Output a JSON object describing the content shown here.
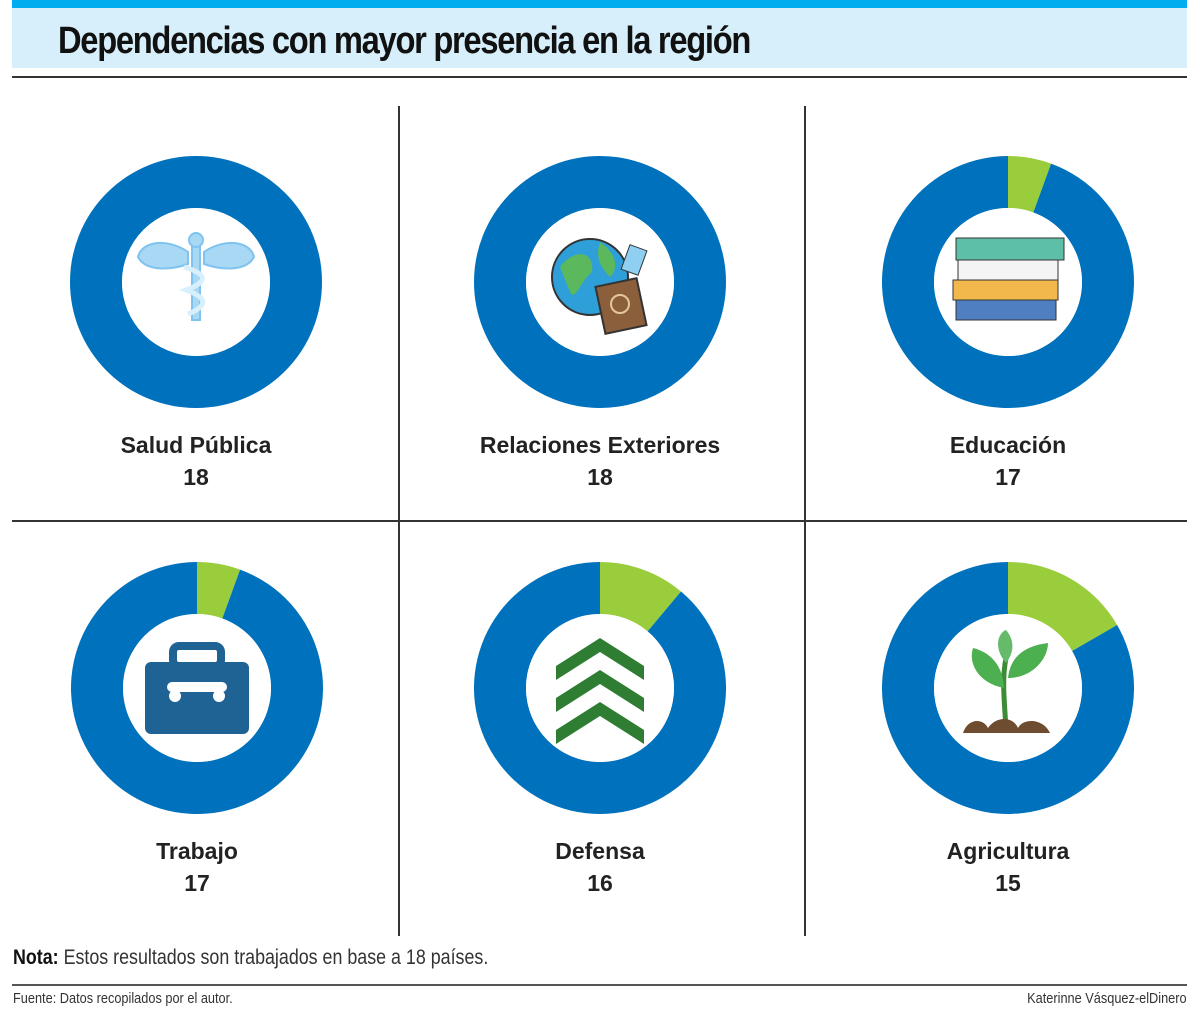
{
  "header": {
    "title": "Dependencias con mayor presencia en la región"
  },
  "chart_data": {
    "type": "pie",
    "subtype": "donut",
    "total": 18,
    "colors": {
      "value": "#0071bc",
      "remainder": "#9acd3c"
    },
    "items": [
      {
        "name": "Salud Pública",
        "value": 18,
        "icon": "caduceus-icon"
      },
      {
        "name": "Relaciones Exteriores",
        "value": 18,
        "icon": "globe-passport-icon"
      },
      {
        "name": "Educación",
        "value": 17,
        "icon": "books-icon"
      },
      {
        "name": "Trabajo",
        "value": 17,
        "icon": "briefcase-icon"
      },
      {
        "name": "Defensa",
        "value": 16,
        "icon": "chevrons-icon"
      },
      {
        "name": "Agricultura",
        "value": 15,
        "icon": "sprout-icon"
      }
    ]
  },
  "footer": {
    "note_label": "Nota:",
    "note_text": " Estos resultados son trabajados en base a 18 países.",
    "source": "Fuente: Datos recopilados por el autor.",
    "credit": "Katerinne Vásquez-elDinero"
  }
}
